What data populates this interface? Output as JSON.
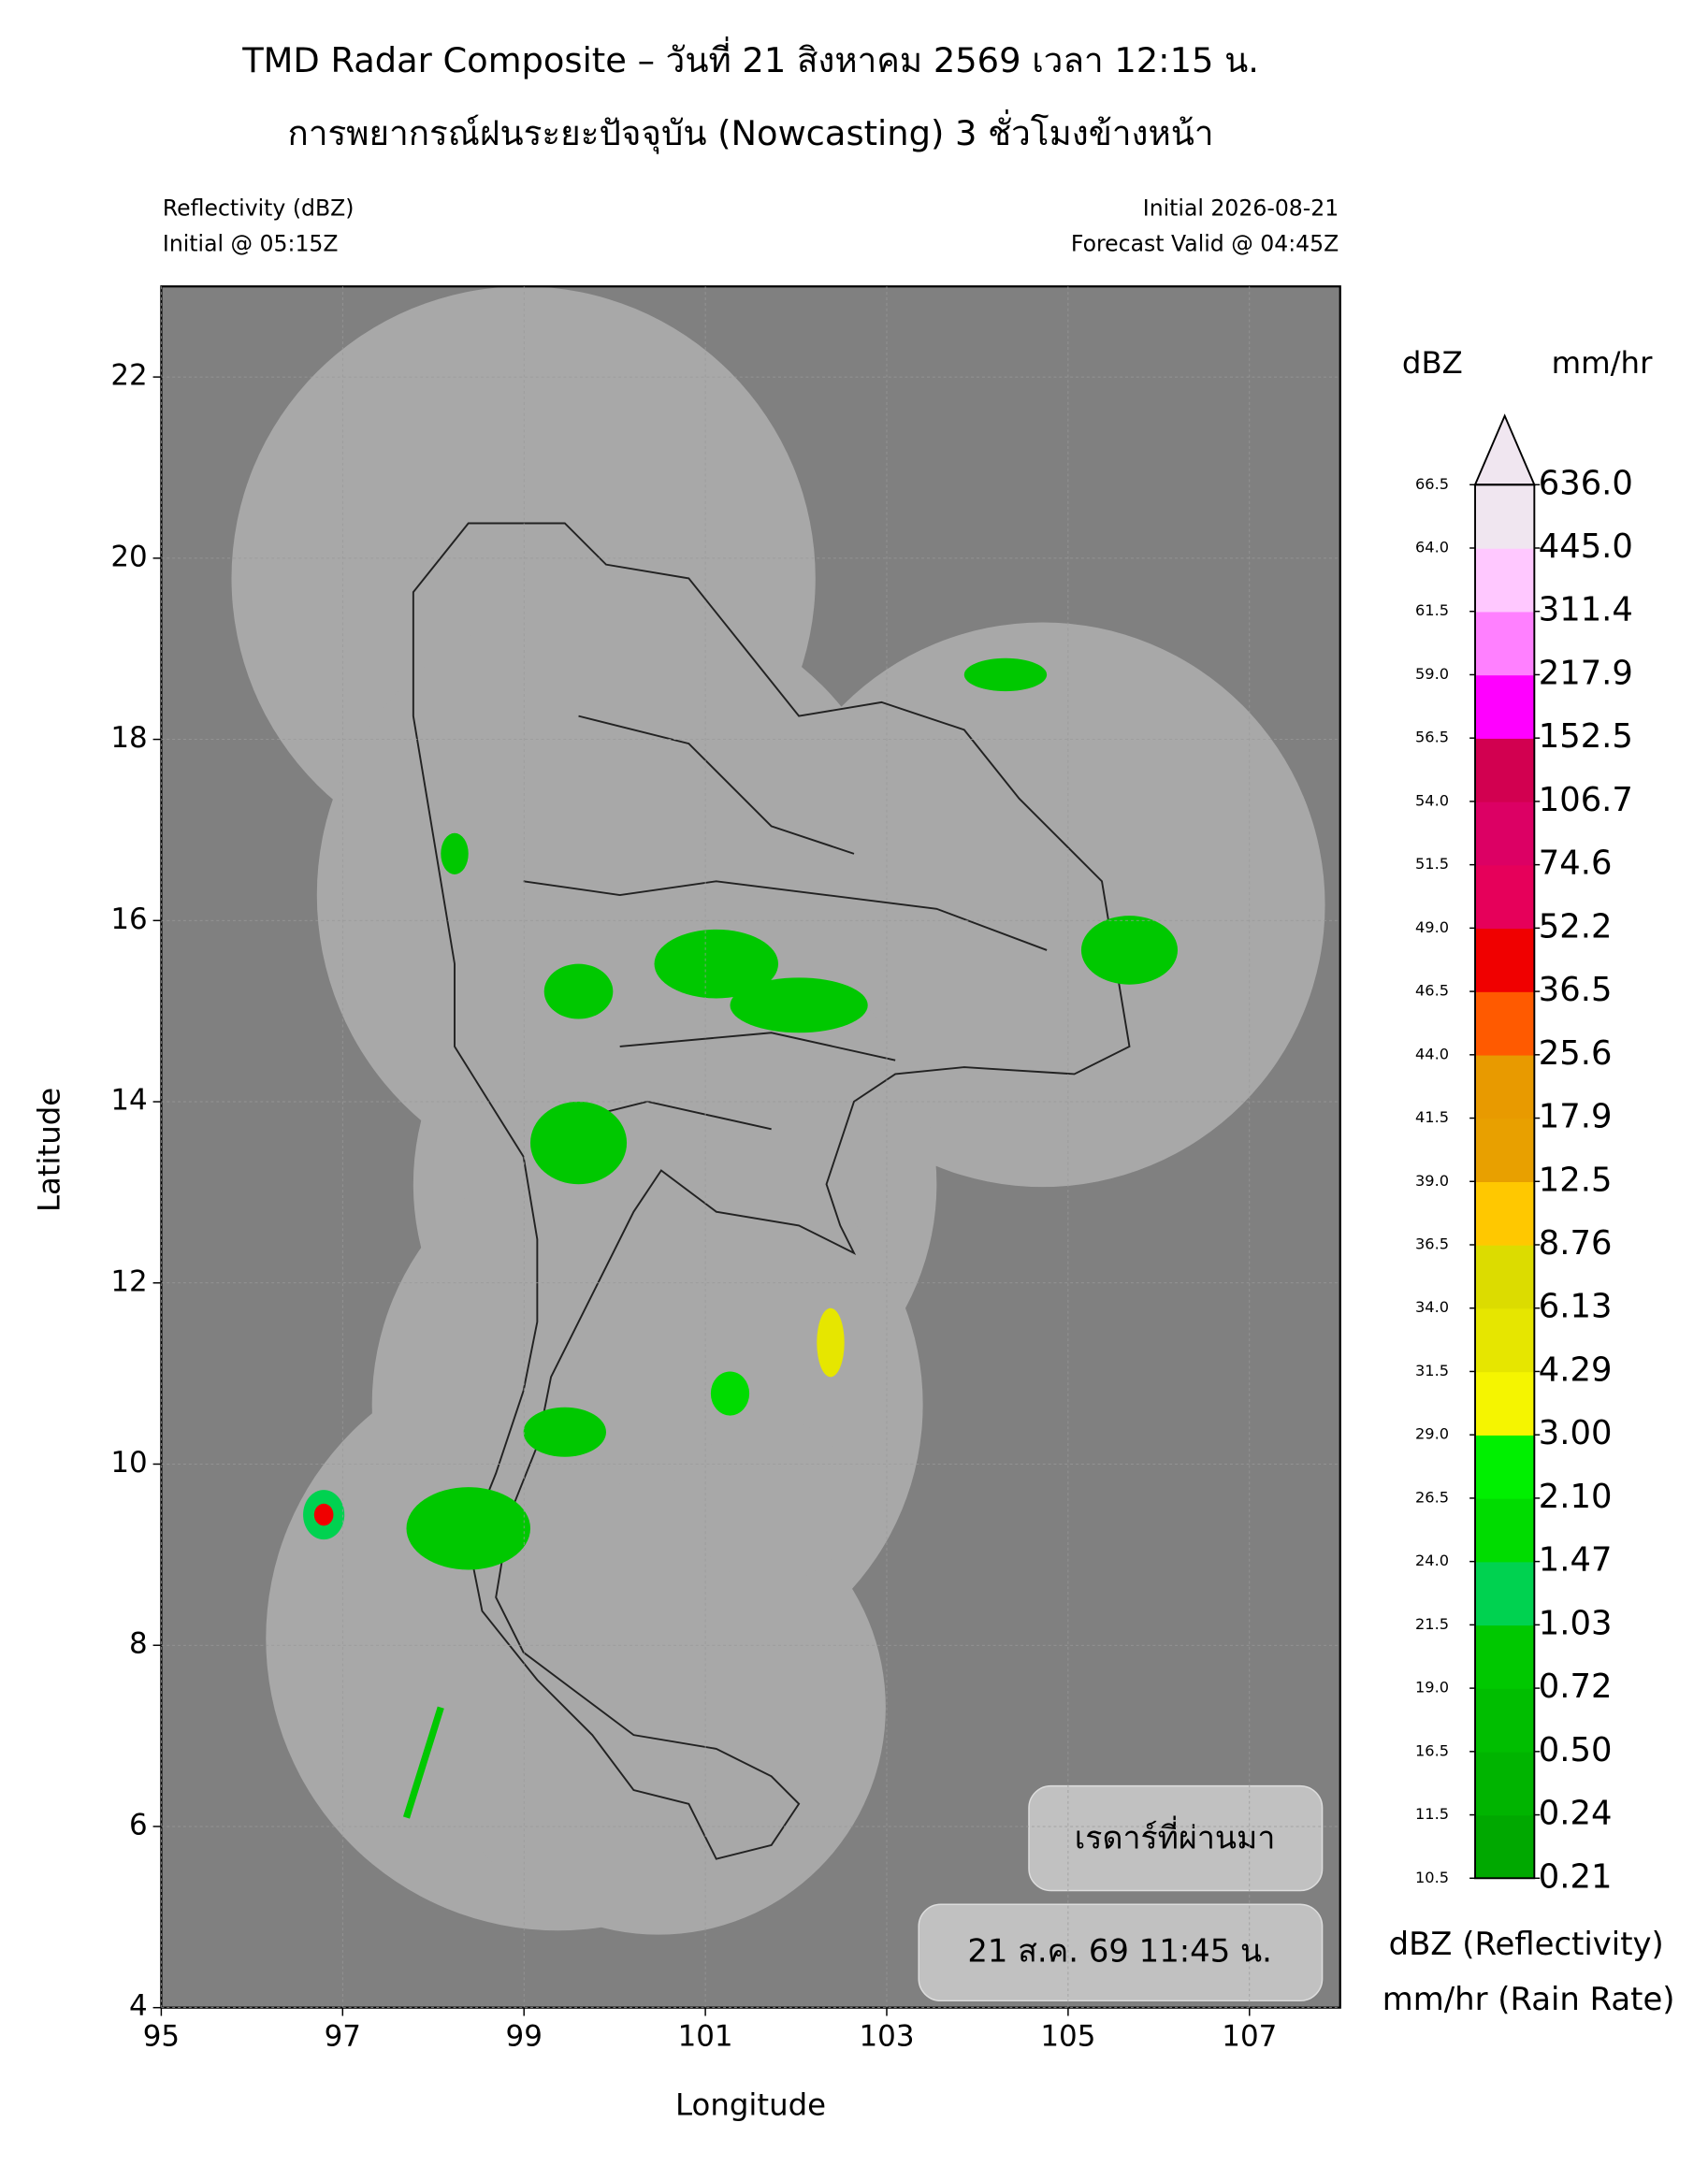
{
  "chart_data": {
    "type": "map",
    "title": "TMD Radar Composite – วันที่ 21 สิงหาคม 2569 เวลา 12:15 น.",
    "subtitle": "การพยากรณ์ฝนระยะปัจจุบัน (Nowcasting) 3 ชั่วโมงข้างหน้า",
    "left_info": [
      "Reflectivity (dBZ)",
      "Initial @ 05:15Z"
    ],
    "right_info": [
      "Initial 2026-08-21",
      "Forecast Valid @ 04:45Z"
    ],
    "x_label": "Longitude",
    "y_label": "Latitude",
    "xlim": [
      95,
      108
    ],
    "ylim": [
      4,
      23
    ],
    "xticks": [
      95,
      97,
      99,
      101,
      103,
      105,
      107
    ],
    "yticks": [
      4,
      6,
      8,
      10,
      12,
      14,
      16,
      18,
      20,
      22
    ],
    "colorbar": {
      "header_left": "dBZ",
      "header_right": "mm/hr",
      "footer": [
        "dBZ (Reflectivity)",
        "mm/hr (Rain Rate)"
      ],
      "dbz_ticks": [
        10.5,
        11.5,
        16.5,
        {
          "value": 19,
          "label": "19.0"
        },
        21.5,
        {
          "value": 24,
          "label": "24.0"
        },
        26.5,
        {
          "value": 29,
          "label": "29.0"
        },
        31.5,
        {
          "value": 34,
          "label": "34.0"
        },
        36.5,
        {
          "value": 39,
          "label": "39.0"
        },
        41.5,
        {
          "value": 44,
          "label": "44.0"
        },
        46.5,
        {
          "value": 49,
          "label": "49.0"
        },
        51.5,
        {
          "value": 54,
          "label": "54.0"
        },
        56.5,
        {
          "value": 59,
          "label": "59.0"
        },
        61.5,
        {
          "value": 64,
          "label": "64.0"
        },
        66.5
      ],
      "rate_ticks": [
        0.21,
        0.24,
        {
          "value": 0.5,
          "label": "0.50"
        },
        0.72,
        1.03,
        1.47,
        {
          "value": 2.1,
          "label": "2.10"
        },
        {
          "value": 3,
          "label": "3.00"
        },
        4.29,
        6.13,
        8.76,
        12.5,
        17.9,
        25.6,
        36.5,
        52.2,
        74.6,
        106.7,
        152.5,
        217.9,
        311.4,
        {
          "value": 445,
          "label": "445.0"
        },
        {
          "value": 636,
          "label": "636.0"
        }
      ],
      "colors": [
        "#00a800",
        "#00b400",
        "#00be00",
        "#00c800",
        "#00d250",
        "#00dc00",
        "#00f000",
        "#f5f500",
        "#e6e600",
        "#dcdc00",
        "#ffc800",
        "#e8a000",
        "#e89a00",
        "#ff5a00",
        "#f00000",
        "#e6005a",
        "#dc0064",
        "#d20050",
        "#ff00ff",
        "#ff80ff",
        "#ffc8ff",
        "#f0e6f0"
      ],
      "extend_color": "#f0e6f0"
    },
    "labels": [
      "เรดาร์ที่ผ่านมา",
      "21 ส.ค. 69 11:45 น."
    ]
  }
}
